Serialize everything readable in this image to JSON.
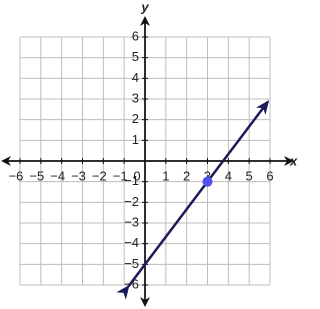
{
  "chart_data": {
    "type": "line",
    "x_label": "x",
    "y_label": "y",
    "xlim": [
      -6,
      6
    ],
    "ylim": [
      -6,
      6
    ],
    "xticks": [
      {
        "value": -6,
        "label": "−6"
      },
      {
        "value": -5,
        "label": "−5"
      },
      {
        "value": -4,
        "label": "−4"
      },
      {
        "value": -3,
        "label": "−3"
      },
      {
        "value": -2,
        "label": "−2"
      },
      {
        "value": -1,
        "label": "−1"
      },
      0,
      1,
      2,
      3,
      4,
      5,
      6
    ],
    "yticks": [
      {
        "value": -6,
        "label": "−6"
      },
      {
        "value": -5,
        "label": "−5"
      },
      {
        "value": -4,
        "label": "−4"
      },
      {
        "value": -3,
        "label": "−3"
      },
      {
        "value": -2,
        "label": "−2"
      },
      {
        "value": -1,
        "label": "−1"
      },
      1,
      2,
      3,
      4,
      5,
      6
    ],
    "grid": true,
    "series": [
      {
        "color": "#1c1a5a",
        "x": [
          -0.8,
          5.9
        ],
        "values": [
          -6.07,
          2.87
        ]
      }
    ],
    "points": {
      "color": "#4f4ff2",
      "x": [
        3
      ],
      "values": [
        -1
      ]
    }
  }
}
